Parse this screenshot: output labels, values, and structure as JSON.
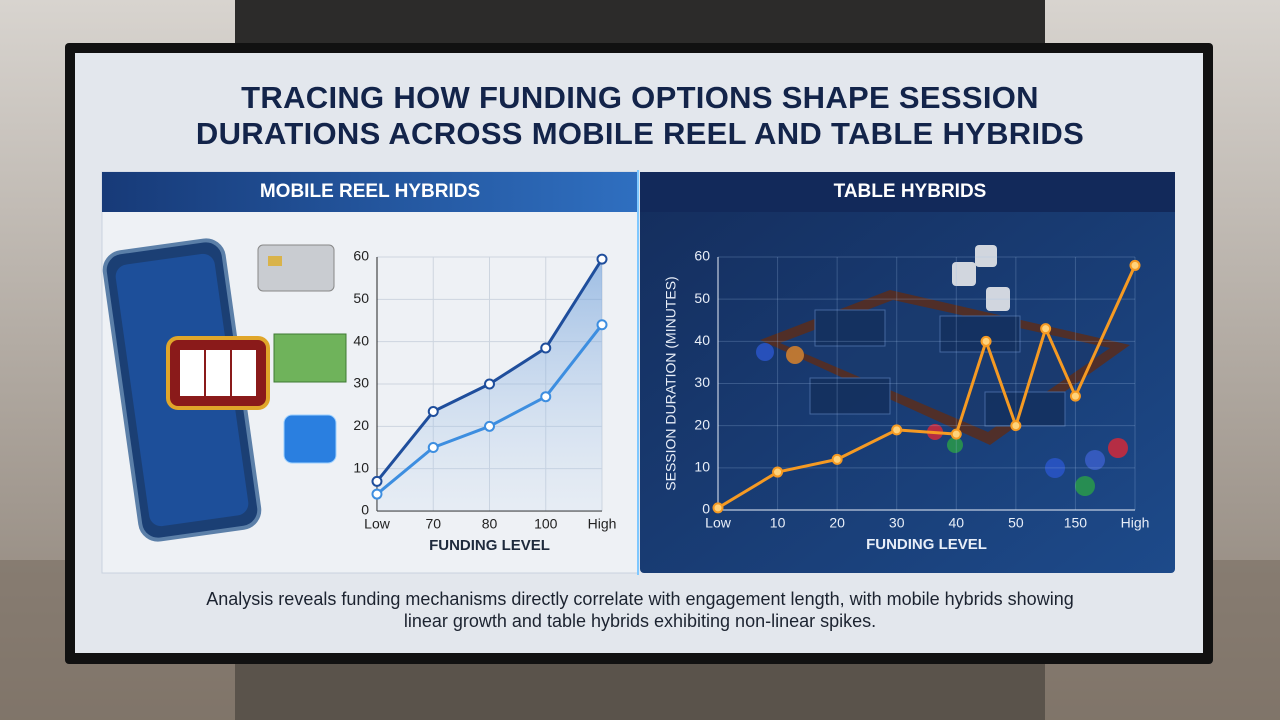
{
  "title": "TRACING HOW FUNDING OPTIONS SHAPE SESSION DURATIONS ACROSS MOBILE REEL AND TABLE HYBRIDS",
  "caption": "Analysis reveals funding mechanisms directly correlate with engagement length, with mobile hybrids showing linear growth and table hybrids exhibiting non-linear spikes.",
  "chart_data": [
    {
      "type": "line",
      "title": "MOBILE REEL HYBRIDS",
      "x_label": "FUNDING LEVEL",
      "categories": [
        "Low",
        "70",
        "80",
        "100",
        "High"
      ],
      "series": [
        {
          "color": "#1f4e9c",
          "values": [
            7,
            23.5,
            30,
            38.5,
            59.5
          ]
        },
        {
          "color": "#3d8ee0",
          "values": [
            4,
            15,
            20,
            27,
            44
          ]
        }
      ],
      "ylim": [
        0,
        60
      ],
      "yticks": [
        0,
        10,
        20,
        30,
        40,
        50,
        60
      ],
      "grid": true,
      "area": true
    },
    {
      "type": "line",
      "title": "TABLE HYBRIDS",
      "x_label": "FUNDING LEVEL",
      "y_label": "SESSION DURATION (MINUTES)",
      "categories": [
        "Low",
        "10",
        "20",
        "30",
        "40",
        null,
        "50",
        null,
        "150",
        "High"
      ],
      "series": [
        {
          "color": "#f59a23",
          "values": [
            0.5,
            9,
            12,
            19,
            18,
            40,
            20,
            43,
            27,
            58
          ]
        }
      ],
      "ylim": [
        0,
        60
      ],
      "yticks": [
        0,
        10,
        20,
        30,
        40,
        50,
        60
      ],
      "grid": true,
      "area": false
    }
  ]
}
